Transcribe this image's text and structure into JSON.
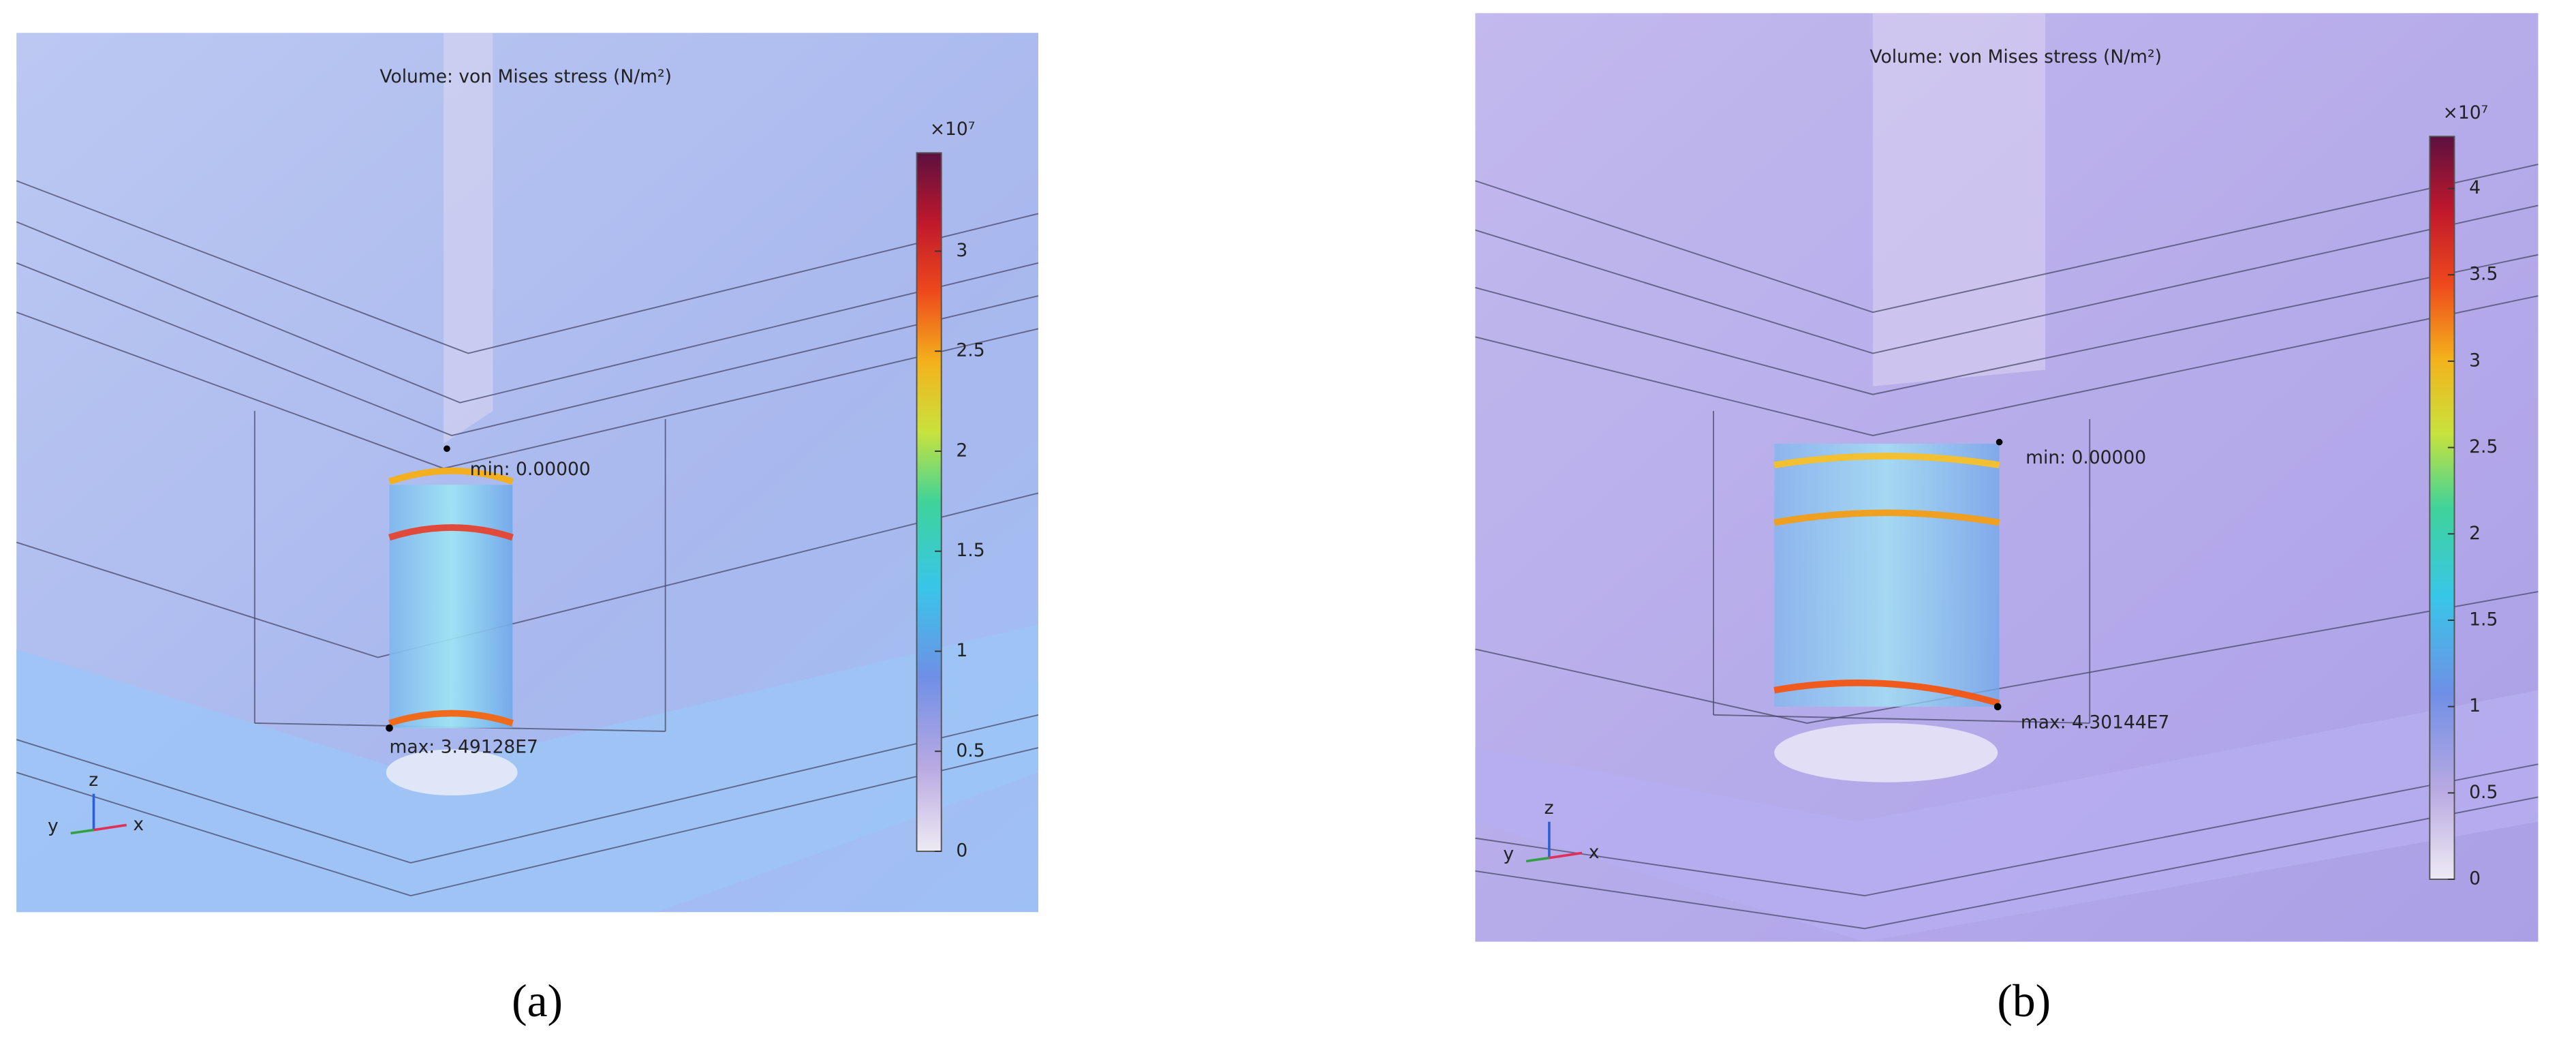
{
  "panels": [
    {
      "label": "(a)",
      "title": "Volume: von Mises stress (N/m²)",
      "multiplier": "×10⁷",
      "colorbar": {
        "range": [
          0,
          3.49128
        ],
        "ticks": [
          0,
          0.5,
          1,
          1.5,
          2,
          2.5,
          3
        ]
      },
      "min_label": "min: 0.00000",
      "max_label": "max: 3.49128E7",
      "axes": {
        "z": "z",
        "y": "y",
        "x": "x"
      }
    },
    {
      "label": "(b)",
      "title": "Volume: von Mises stress (N/m²)",
      "multiplier": "×10⁷",
      "colorbar": {
        "range": [
          0,
          4.30144
        ],
        "ticks": [
          0,
          0.5,
          1,
          1.5,
          2,
          2.5,
          3,
          3.5,
          4
        ]
      },
      "min_label": "min: 0.00000",
      "max_label": "max: 4.30144E7",
      "axes": {
        "z": "z",
        "y": "y",
        "x": "x"
      }
    }
  ]
}
